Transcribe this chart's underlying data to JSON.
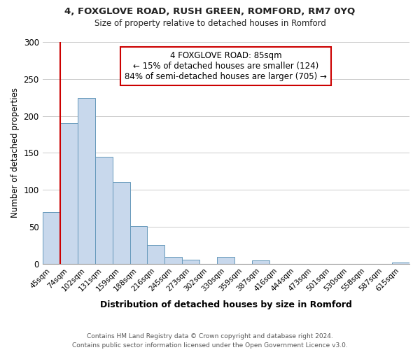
{
  "title1": "4, FOXGLOVE ROAD, RUSH GREEN, ROMFORD, RM7 0YQ",
  "title2": "Size of property relative to detached houses in Romford",
  "xlabel": "Distribution of detached houses by size in Romford",
  "ylabel": "Number of detached properties",
  "bar_labels": [
    "45sqm",
    "74sqm",
    "102sqm",
    "131sqm",
    "159sqm",
    "188sqm",
    "216sqm",
    "245sqm",
    "273sqm",
    "302sqm",
    "330sqm",
    "359sqm",
    "387sqm",
    "416sqm",
    "444sqm",
    "473sqm",
    "501sqm",
    "530sqm",
    "558sqm",
    "587sqm",
    "615sqm"
  ],
  "bar_values": [
    70,
    190,
    224,
    145,
    111,
    51,
    25,
    9,
    5,
    0,
    9,
    0,
    4,
    0,
    0,
    0,
    0,
    0,
    0,
    0,
    2
  ],
  "bar_color": "#c8d8ec",
  "bar_edge_color": "#6699bb",
  "vline_x": 1.0,
  "vline_color": "#cc0000",
  "annotation_text": "4 FOXGLOVE ROAD: 85sqm\n← 15% of detached houses are smaller (124)\n84% of semi-detached houses are larger (705) →",
  "annotation_box_edgecolor": "#cc0000",
  "ylim": [
    0,
    300
  ],
  "yticks": [
    0,
    50,
    100,
    150,
    200,
    250,
    300
  ],
  "footer": "Contains HM Land Registry data © Crown copyright and database right 2024.\nContains public sector information licensed under the Open Government Licence v3.0.",
  "bg_color": "#ffffff",
  "grid_color": "#cccccc"
}
